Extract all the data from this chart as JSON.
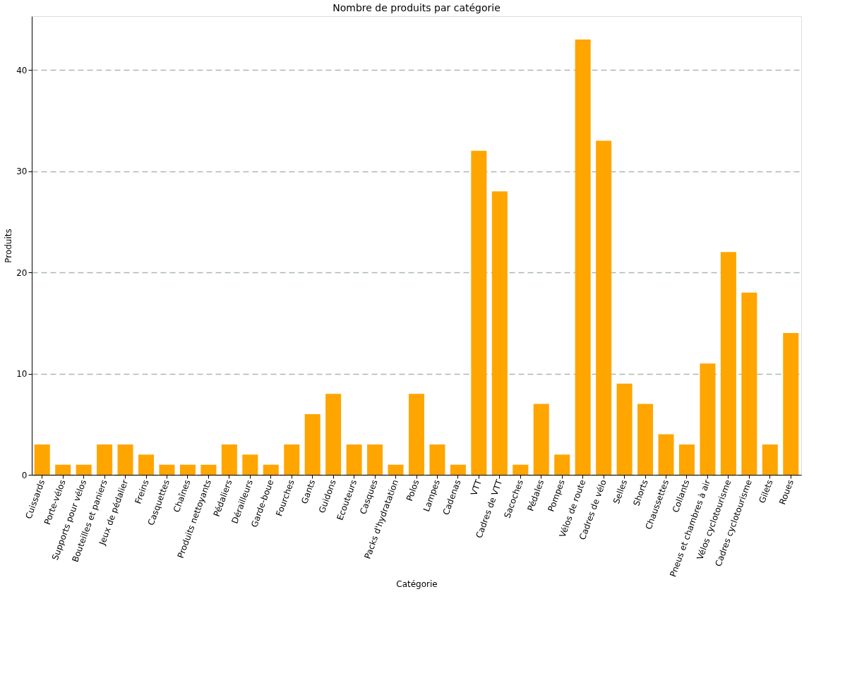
{
  "chart_data": {
    "type": "bar",
    "title": "Nombre de produits par catégorie",
    "xlabel": "Catégorie",
    "ylabel": "Produits",
    "categories": [
      "Cuissards",
      "Porte-vélos",
      "Supports pour vélos",
      "Bouteilles et paniers",
      "Jeux de pédalier",
      "Freins",
      "Casquettes",
      "Chaînes",
      "Produits nettoyants",
      "Pédaliers",
      "Dérailleurs",
      "Garde-boue",
      "Fourches",
      "Gants",
      "Guidons",
      "Ecouteurs",
      "Casques",
      "Packs d'hydratation",
      "Polos",
      "Lampes",
      "Cadenas",
      "VTT",
      "Cadres de VTT",
      "Sacoches",
      "Pédales",
      "Pompes",
      "Vélos de route",
      "Cadres de vélo",
      "Selles",
      "Shorts",
      "Chaussettes",
      "Collants",
      "Pneus et chambres à air",
      "Vélos cyclotourisme",
      "Cadres cyclotourisme",
      "Gilets",
      "Roues"
    ],
    "values": [
      3,
      1,
      1,
      3,
      3,
      2,
      1,
      1,
      1,
      3,
      2,
      1,
      3,
      6,
      8,
      3,
      3,
      1,
      8,
      3,
      1,
      32,
      28,
      1,
      7,
      2,
      43,
      33,
      9,
      7,
      4,
      3,
      11,
      22,
      18,
      3,
      14
    ],
    "color": "#ffa500",
    "ylim": [
      0,
      45.3
    ],
    "yticks": [
      0,
      10,
      20,
      30,
      40
    ],
    "grid": "y"
  }
}
